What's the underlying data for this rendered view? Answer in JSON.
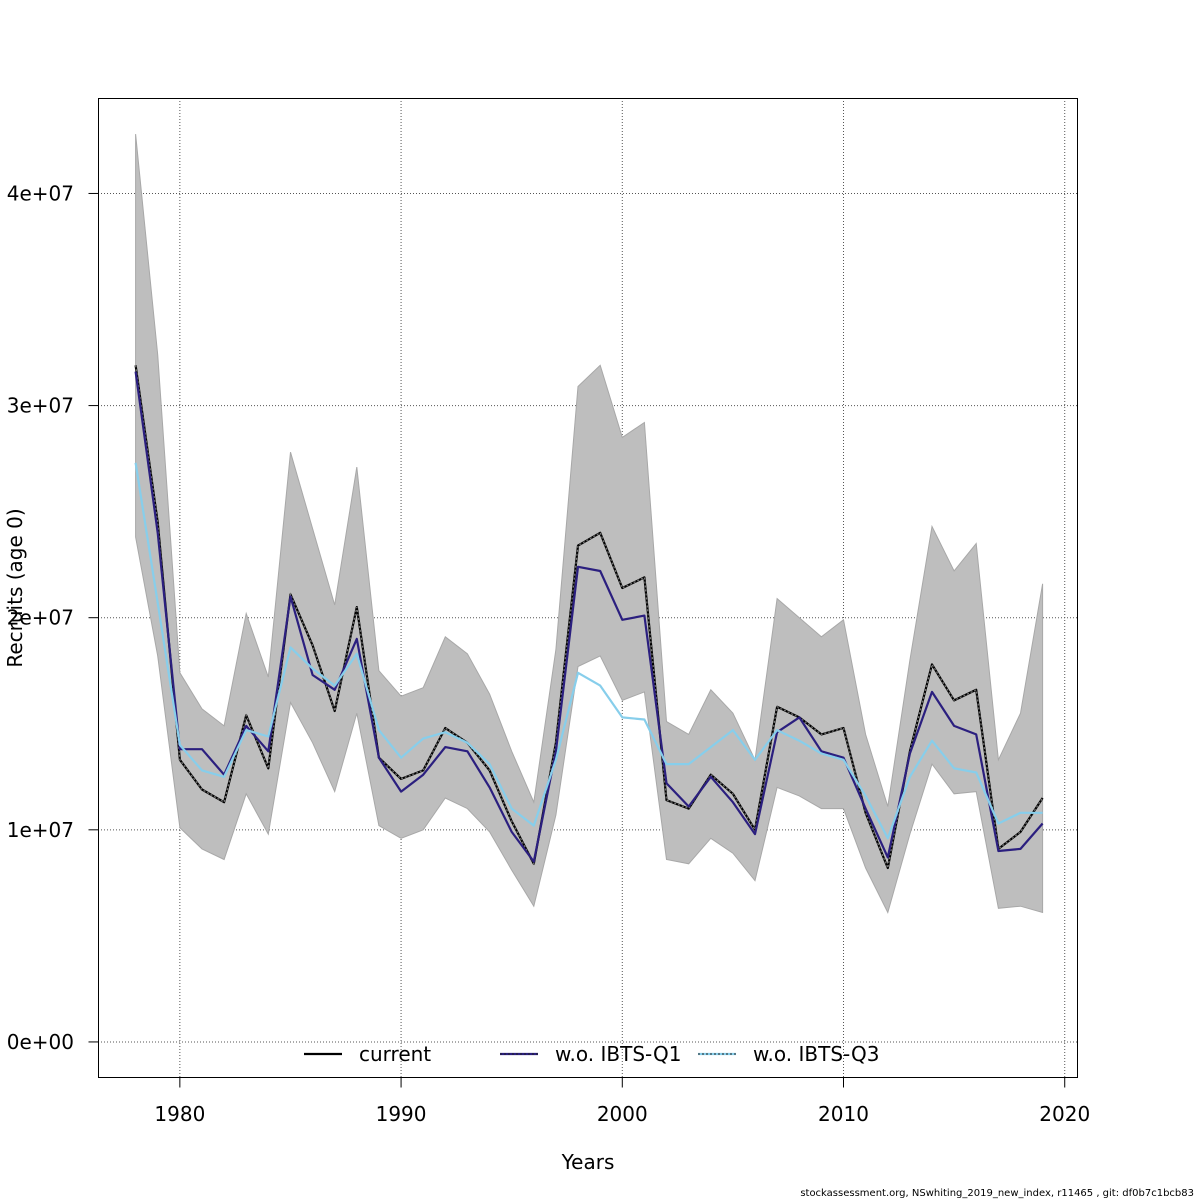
{
  "chart_data": {
    "type": "line",
    "title": "",
    "xlabel": "Years",
    "ylabel": "Recruits (age 0)",
    "xlim": [
      1976.3,
      2020.6
    ],
    "ylim": [
      -1700000,
      44500000
    ],
    "x_ticks": [
      1980,
      1990,
      2000,
      2010,
      2020
    ],
    "x_tick_labels": [
      "1980",
      "1990",
      "2000",
      "2010",
      "2020"
    ],
    "y_ticks": [
      0,
      10000000,
      20000000,
      30000000,
      40000000
    ],
    "y_tick_labels": [
      "0e+00",
      "1e+07",
      "2e+07",
      "3e+07",
      "4e+07"
    ],
    "grid": true,
    "legend_position": "bottom",
    "x": [
      1978,
      1979,
      1980,
      1981,
      1982,
      1983,
      1984,
      1985,
      1986,
      1987,
      1988,
      1989,
      1990,
      1991,
      1992,
      1993,
      1994,
      1995,
      1996,
      1997,
      1998,
      1999,
      2000,
      2001,
      2002,
      2003,
      2004,
      2005,
      2006,
      2007,
      2008,
      2009,
      2010,
      2011,
      2012,
      2013,
      2014,
      2015,
      2016,
      2017,
      2018,
      2019
    ],
    "band": {
      "color": "#bebebe",
      "upper": [
        42800000,
        32400000,
        17400000,
        15700000,
        14900000,
        20200000,
        17200000,
        27800000,
        24200000,
        20600000,
        27100000,
        17500000,
        16300000,
        16700000,
        19100000,
        18300000,
        16400000,
        13700000,
        11300000,
        18500000,
        30900000,
        31900000,
        28500000,
        29200000,
        15100000,
        14500000,
        16600000,
        15500000,
        13300000,
        20900000,
        20000000,
        19100000,
        19900000,
        14500000,
        11100000,
        18000000,
        24300000,
        22200000,
        23500000,
        13300000,
        15500000,
        21600000
      ],
      "lower": [
        23800000,
        18200000,
        10100000,
        9100000,
        8600000,
        11700000,
        9800000,
        16000000,
        14100000,
        11800000,
        15500000,
        10200000,
        9600000,
        10000000,
        11500000,
        11000000,
        9900000,
        8100000,
        6400000,
        10700000,
        17700000,
        18200000,
        16100000,
        16500000,
        8600000,
        8400000,
        9600000,
        8900000,
        7600000,
        12000000,
        11600000,
        11000000,
        11000000,
        8200000,
        6100000,
        9800000,
        13100000,
        11700000,
        11800000,
        6300000,
        6400000,
        6100000
      ]
    },
    "series": [
      {
        "name": "current",
        "color": "#000000",
        "values": [
          31900000,
          24500000,
          13300000,
          11900000,
          11300000,
          15400000,
          12900000,
          21100000,
          18700000,
          15600000,
          20500000,
          13400000,
          12400000,
          12800000,
          14800000,
          14100000,
          12800000,
          10400000,
          8400000,
          14100000,
          23400000,
          24000000,
          21400000,
          21900000,
          11400000,
          11000000,
          12600000,
          11700000,
          10000000,
          15800000,
          15300000,
          14500000,
          14800000,
          10800000,
          8200000,
          13700000,
          17800000,
          16100000,
          16600000,
          9100000,
          9900000,
          11500000
        ]
      },
      {
        "name": "w.o. IBTS-Q1",
        "color": "#2b1f7f",
        "values": [
          31600000,
          24000000,
          13800000,
          13800000,
          12600000,
          14900000,
          13700000,
          21000000,
          17300000,
          16600000,
          19000000,
          13400000,
          11800000,
          12600000,
          13900000,
          13700000,
          12000000,
          9900000,
          8500000,
          13700000,
          22400000,
          22200000,
          19900000,
          20100000,
          12200000,
          11100000,
          12500000,
          11300000,
          9800000,
          14600000,
          15300000,
          13700000,
          13400000,
          11000000,
          8700000,
          13600000,
          16500000,
          14900000,
          14500000,
          9000000,
          9100000,
          10300000
        ]
      },
      {
        "name": "w.o. IBTS-Q3",
        "color": "#87ceeb",
        "values": [
          27300000,
          20700000,
          14000000,
          12800000,
          12500000,
          14700000,
          14400000,
          18600000,
          17600000,
          16800000,
          18300000,
          14700000,
          13400000,
          14300000,
          14600000,
          14100000,
          13100000,
          11000000,
          10200000,
          13300000,
          17400000,
          16800000,
          15300000,
          15200000,
          13100000,
          13100000,
          13900000,
          14700000,
          13300000,
          14700000,
          14200000,
          13600000,
          13300000,
          11600000,
          9600000,
          12500000,
          14200000,
          12900000,
          12700000,
          10300000,
          10800000,
          10800000
        ]
      }
    ]
  },
  "footer": {
    "text": "stockassessment.org, NSwhiting_2019_new_index, r11465 , git: df0b7c1bcb83"
  }
}
